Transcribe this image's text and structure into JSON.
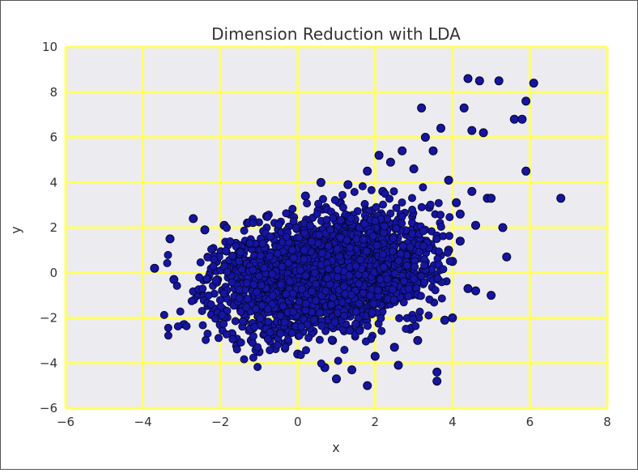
{
  "chart_data": {
    "type": "scatter",
    "title": "Dimension Reduction with LDA",
    "xlabel": "x",
    "ylabel": "y",
    "xlim": [
      -6,
      8
    ],
    "ylim": [
      -6,
      10
    ],
    "x_ticks": [
      "−6",
      "−4",
      "−2",
      "0",
      "2",
      "4",
      "6",
      "8"
    ],
    "y_ticks": [
      "−6",
      "−4",
      "−2",
      "0",
      "2",
      "4",
      "6",
      "8",
      "10"
    ],
    "grid": true,
    "colors": {
      "background": "#ececf0",
      "grid": "#ffff66",
      "marker_fill": "#1515a0",
      "marker_edge": "#05052e"
    },
    "series": [
      {
        "points": [
          [
            -3.7,
            0.2
          ],
          [
            -3.3,
            1.5
          ],
          [
            -3.2,
            -0.3
          ],
          [
            -2.7,
            2.4
          ],
          [
            -2.6,
            -1.0
          ],
          [
            -2.4,
            1.9
          ],
          [
            -2.2,
            -1.8
          ],
          [
            -2.1,
            0.5
          ],
          [
            -2.0,
            -2.3
          ],
          [
            -1.9,
            2.1
          ],
          [
            -1.7,
            -2.7
          ],
          [
            -1.6,
            1.3
          ],
          [
            -1.5,
            -1.5
          ],
          [
            -1.4,
            0.0
          ],
          [
            -1.3,
            2.2
          ],
          [
            -1.2,
            -3.0
          ],
          [
            -1.0,
            -3.5
          ],
          [
            -0.8,
            2.5
          ],
          [
            -0.6,
            -3.3
          ],
          [
            -0.4,
            0.9
          ],
          [
            -0.3,
            -1.9
          ],
          [
            -0.2,
            2.6
          ],
          [
            0.0,
            -3.6
          ],
          [
            0.1,
            -1.2
          ],
          [
            0.2,
            3.4
          ],
          [
            0.3,
            0.3
          ],
          [
            0.4,
            -2.6
          ],
          [
            0.6,
            4.0
          ],
          [
            0.7,
            -4.2
          ],
          [
            0.8,
            1.4
          ],
          [
            0.9,
            -3.0
          ],
          [
            1.0,
            -4.7
          ],
          [
            1.1,
            3.1
          ],
          [
            1.2,
            -0.9
          ],
          [
            1.3,
            3.9
          ],
          [
            1.4,
            -4.3
          ],
          [
            1.5,
            2.0
          ],
          [
            1.6,
            -2.2
          ],
          [
            1.8,
            4.5
          ],
          [
            1.8,
            -5.0
          ],
          [
            1.9,
            0.6
          ],
          [
            2.0,
            -3.7
          ],
          [
            2.1,
            5.2
          ],
          [
            2.2,
            3.6
          ],
          [
            2.3,
            -1.4
          ],
          [
            2.4,
            4.9
          ],
          [
            2.5,
            -3.3
          ],
          [
            2.6,
            -4.1
          ],
          [
            2.7,
            5.4
          ],
          [
            2.8,
            1.7
          ],
          [
            2.9,
            -2.5
          ],
          [
            3.0,
            4.6
          ],
          [
            3.1,
            -3.0
          ],
          [
            3.2,
            7.3
          ],
          [
            3.2,
            -0.4
          ],
          [
            3.3,
            6.0
          ],
          [
            3.4,
            2.9
          ],
          [
            3.5,
            5.4
          ],
          [
            3.6,
            -4.4
          ],
          [
            3.6,
            -4.8
          ],
          [
            3.7,
            6.4
          ],
          [
            3.8,
            -2.1
          ],
          [
            3.9,
            4.1
          ],
          [
            4.0,
            -2.0
          ],
          [
            4.0,
            0.5
          ],
          [
            4.1,
            3.1
          ],
          [
            4.2,
            1.4
          ],
          [
            4.3,
            7.3
          ],
          [
            4.4,
            8.6
          ],
          [
            4.5,
            3.6
          ],
          [
            4.5,
            6.3
          ],
          [
            4.6,
            -0.8
          ],
          [
            4.6,
            2.1
          ],
          [
            4.7,
            8.5
          ],
          [
            4.8,
            6.2
          ],
          [
            4.9,
            3.3
          ],
          [
            5.0,
            -1.0
          ],
          [
            5.0,
            3.3
          ],
          [
            5.2,
            8.5
          ],
          [
            5.3,
            2.0
          ],
          [
            5.4,
            0.7
          ],
          [
            5.6,
            6.8
          ],
          [
            5.8,
            6.8
          ],
          [
            5.9,
            4.5
          ],
          [
            5.9,
            7.6
          ],
          [
            6.1,
            8.4
          ],
          [
            6.8,
            3.3
          ],
          [
            4.4,
            -0.7
          ],
          [
            4.2,
            2.6
          ],
          [
            3.9,
            1.0
          ]
        ]
      }
    ]
  }
}
